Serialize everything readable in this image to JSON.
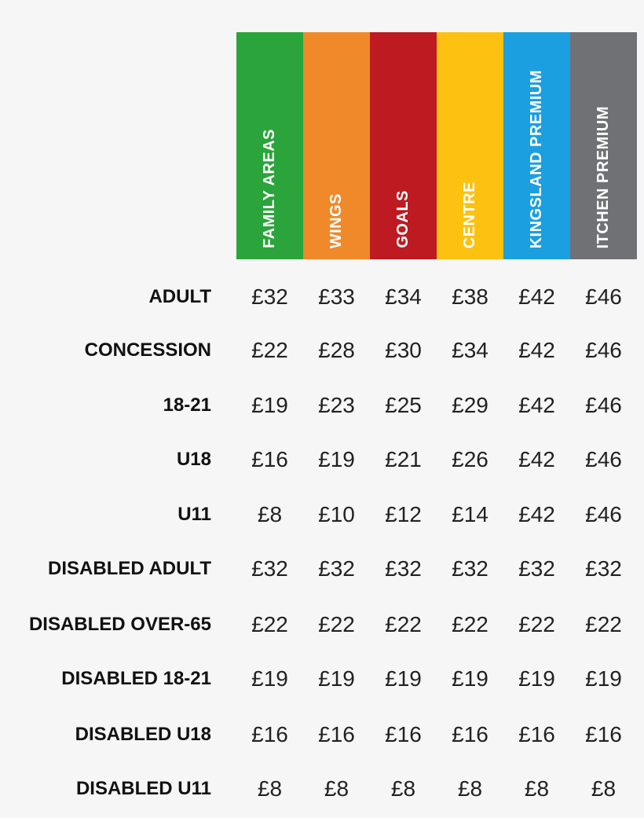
{
  "table": {
    "columns": [
      {
        "label": "FAMILY AREAS",
        "color": "#2ba43b"
      },
      {
        "label": "WINGS",
        "color": "#f0892a"
      },
      {
        "label": "GOALS",
        "color": "#bd1a21"
      },
      {
        "label": "CENTRE",
        "color": "#fcc111"
      },
      {
        "label": "KINGSLAND PREMIUM",
        "color": "#1b9fe0"
      },
      {
        "label": "ITCHEN PREMIUM",
        "color": "#707175"
      }
    ],
    "rows": [
      {
        "label": "ADULT",
        "prices": [
          "£32",
          "£33",
          "£34",
          "£38",
          "£42",
          "£46"
        ]
      },
      {
        "label": "CONCESSION",
        "prices": [
          "£22",
          "£28",
          "£30",
          "£34",
          "£42",
          "£46"
        ]
      },
      {
        "label": "18-21",
        "prices": [
          "£19",
          "£23",
          "£25",
          "£29",
          "£42",
          "£46"
        ]
      },
      {
        "label": "U18",
        "prices": [
          "£16",
          "£19",
          "£21",
          "£26",
          "£42",
          "£46"
        ]
      },
      {
        "label": "U11",
        "prices": [
          "£8",
          "£10",
          "£12",
          "£14",
          "£42",
          "£46"
        ]
      },
      {
        "label": "DISABLED ADULT",
        "prices": [
          "£32",
          "£32",
          "£32",
          "£32",
          "£32",
          "£32"
        ]
      },
      {
        "label": "DISABLED OVER-65",
        "prices": [
          "£22",
          "£22",
          "£22",
          "£22",
          "£22",
          "£22"
        ]
      },
      {
        "label": "DISABLED 18-21",
        "prices": [
          "£19",
          "£19",
          "£19",
          "£19",
          "£19",
          "£19"
        ]
      },
      {
        "label": "DISABLED U18",
        "prices": [
          "£16",
          "£16",
          "£16",
          "£16",
          "£16",
          "£16"
        ]
      },
      {
        "label": "DISABLED U11",
        "prices": [
          "£8",
          "£8",
          "£8",
          "£8",
          "£8",
          "£8"
        ]
      }
    ]
  }
}
